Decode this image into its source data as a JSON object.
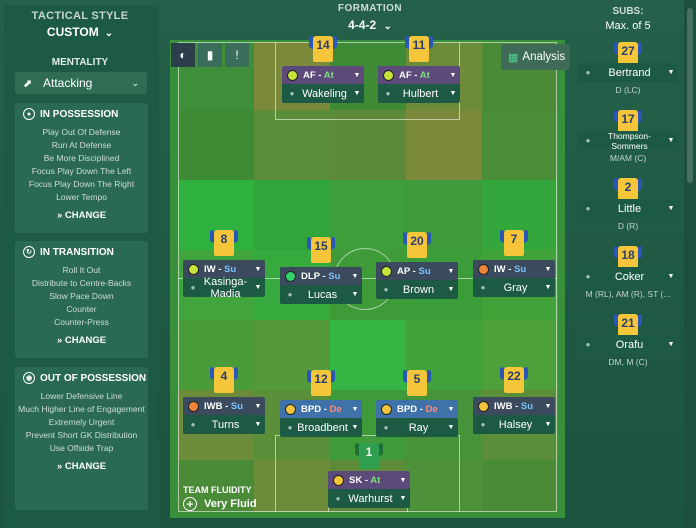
{
  "tactical_style": {
    "title": "TACTICAL STYLE",
    "value": "CUSTOM"
  },
  "mentality": {
    "title": "MENTALITY",
    "value": "Attacking"
  },
  "in_possession": {
    "title": "IN POSSESSION",
    "items": [
      "Play Out Of Defense",
      "Run At Defense",
      "Be More Disciplined",
      "Focus Play Down The Left",
      "Focus Play Down The Right",
      "Lower Tempo"
    ],
    "change": "CHANGE"
  },
  "in_transition": {
    "title": "IN TRANSITION",
    "items": [
      "Roll It Out",
      "Distribute to Centre-Backs",
      "Slow Pace Down",
      "Counter",
      "Counter-Press"
    ],
    "change": "CHANGE"
  },
  "out_of_possession": {
    "title": "OUT OF POSSESSION",
    "items": [
      "Lower Defensive Line",
      "Much Higher Line of Engagement",
      "Extremely Urgent",
      "Prevent Short GK Distribution",
      "Use Offside Trap"
    ],
    "change": "CHANGE"
  },
  "formation": {
    "title": "FORMATION",
    "value": "4-4-2"
  },
  "analysis_label": "Analysis",
  "players": [
    {
      "num": "14",
      "role": "AF",
      "duty": "At",
      "name": "Wakeling",
      "duty_color": "at",
      "dot": "#c7e43a"
    },
    {
      "num": "11",
      "role": "AF",
      "duty": "At",
      "name": "Hulbert",
      "duty_color": "at",
      "dot": "#c7e43a"
    },
    {
      "num": "8",
      "role": "IW",
      "duty": "Su",
      "name": "Kasinga-Madia",
      "duty_color": "su",
      "dot": "#c7e43a"
    },
    {
      "num": "15",
      "role": "DLP",
      "duty": "Su",
      "name": "Lucas",
      "duty_color": "su",
      "dot": "#2fd36a"
    },
    {
      "num": "20",
      "role": "AP",
      "duty": "Su",
      "name": "Brown",
      "duty_color": "su",
      "dot": "#c7e43a"
    },
    {
      "num": "7",
      "role": "IW",
      "duty": "Su",
      "name": "Gray",
      "duty_color": "su",
      "dot": "#f0843a"
    },
    {
      "num": "4",
      "role": "IWB",
      "duty": "Su",
      "name": "Turns",
      "duty_color": "su",
      "dot": "#f0843a"
    },
    {
      "num": "12",
      "role": "BPD",
      "duty": "De",
      "name": "Broadbent",
      "duty_color": "de",
      "dot": "#f5c63a"
    },
    {
      "num": "5",
      "role": "BPD",
      "duty": "De",
      "name": "Ray",
      "duty_color": "de",
      "dot": "#f5c63a"
    },
    {
      "num": "22",
      "role": "IWB",
      "duty": "Su",
      "name": "Halsey",
      "duty_color": "su",
      "dot": "#f5c63a"
    },
    {
      "num": "1",
      "role": "SK",
      "duty": "At",
      "name": "Warhurst",
      "duty_color": "at",
      "dot": "#f5c63a"
    }
  ],
  "subs": {
    "title": "SUBS:",
    "max": "Max. of 5",
    "list": [
      {
        "num": "27",
        "name": "Bertrand",
        "pos": "D (LC)"
      },
      {
        "num": "17",
        "name": "Thompson-Sommers",
        "pos": "M/AM (C)"
      },
      {
        "num": "2",
        "name": "Little",
        "pos": "D (R)"
      },
      {
        "num": "18",
        "name": "Coker",
        "pos": "M (RL), AM (R), ST (..."
      },
      {
        "num": "21",
        "name": "Orafu",
        "pos": "DM, M (C)"
      }
    ]
  },
  "team_fluidity": {
    "title": "TEAM FLUIDITY",
    "value": "Very Fluid"
  }
}
